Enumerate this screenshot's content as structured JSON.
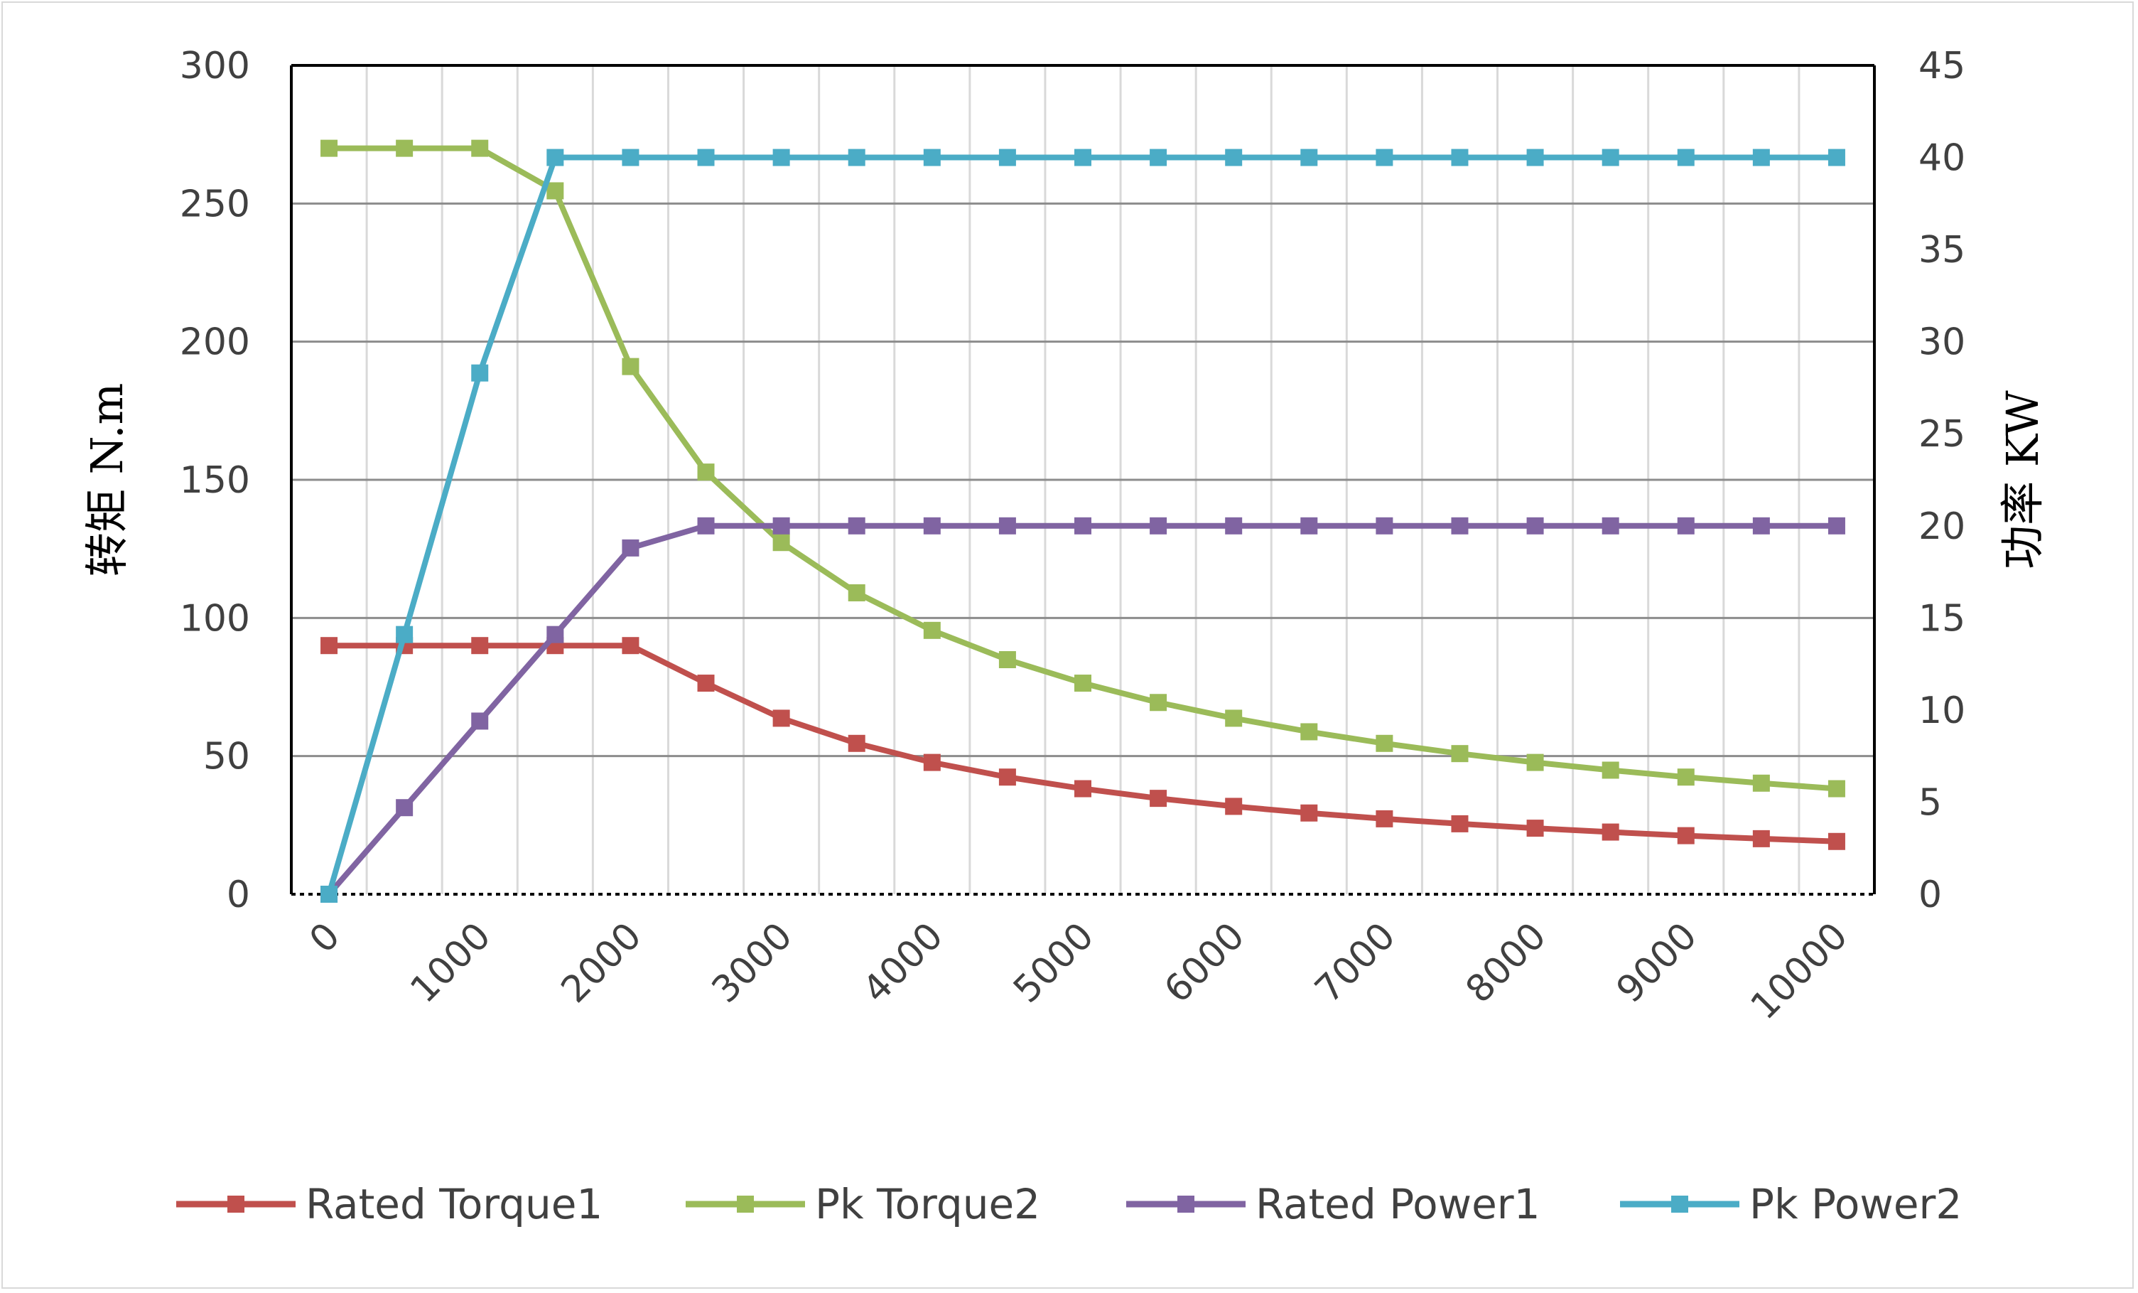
{
  "chart_data": {
    "type": "line",
    "x": [
      0,
      500,
      1000,
      1500,
      2000,
      2500,
      3000,
      3500,
      4000,
      4500,
      5000,
      5500,
      6000,
      6500,
      7000,
      7500,
      8000,
      8500,
      9000,
      9500,
      10000
    ],
    "x_tick_labels": [
      "0",
      "1000",
      "2000",
      "3000",
      "4000",
      "5000",
      "6000",
      "7000",
      "8000",
      "9000",
      "10000"
    ],
    "y_left": {
      "label": "转矩 N.m",
      "range": [
        0,
        300
      ],
      "ticks": [
        0,
        50,
        100,
        150,
        200,
        250,
        300
      ]
    },
    "y_right": {
      "label": "功率 KW",
      "range": [
        0,
        45
      ],
      "ticks": [
        0,
        5,
        10,
        15,
        20,
        25,
        30,
        35,
        40,
        45
      ]
    },
    "grid": true,
    "legend_position": "bottom",
    "series": [
      {
        "name": "Rated Torque1",
        "axis": "left",
        "color": "#c0504d",
        "values": [
          90,
          90,
          90,
          90,
          90,
          76.4,
          63.7,
          54.6,
          47.7,
          42.4,
          38.2,
          34.7,
          31.8,
          29.4,
          27.3,
          25.5,
          23.9,
          22.5,
          21.2,
          20.1,
          19.1
        ]
      },
      {
        "name": "Pk Torque2",
        "axis": "left",
        "color": "#9bbb59",
        "values": [
          270,
          270,
          270,
          254.6,
          191,
          152.8,
          127.3,
          109.1,
          95.5,
          84.9,
          76.4,
          69.4,
          63.7,
          58.8,
          54.6,
          50.9,
          47.7,
          44.9,
          42.4,
          40.2,
          38.2
        ]
      },
      {
        "name": "Rated Power1",
        "axis": "right",
        "color": "#8064a2",
        "values": [
          0,
          4.7,
          9.4,
          14.1,
          18.8,
          20,
          20,
          20,
          20,
          20,
          20,
          20,
          20,
          20,
          20,
          20,
          20,
          20,
          20,
          20,
          20
        ]
      },
      {
        "name": "Pk Power2",
        "axis": "right",
        "color": "#4bacc6",
        "values": [
          0,
          14.1,
          28.3,
          40,
          40,
          40,
          40,
          40,
          40,
          40,
          40,
          40,
          40,
          40,
          40,
          40,
          40,
          40,
          40,
          40,
          40
        ]
      }
    ]
  }
}
